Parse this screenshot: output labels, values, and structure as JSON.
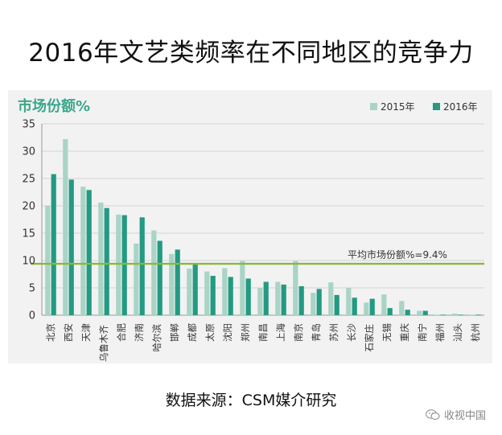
{
  "title": "2016年文艺类频率在不同地区的竞争力",
  "source": "数据来源：CSM媒介研究",
  "watermark": "收视中国",
  "colors": {
    "series_2015": "#a9d4c6",
    "series_2016": "#239a82",
    "average_line": "#8ab83c",
    "unit_label": "#3aa78a",
    "axis_text": "#333333"
  },
  "chart_data": {
    "type": "bar",
    "unit_label": "市场份额%",
    "ylim": [
      0,
      35
    ],
    "yticks": [
      0,
      5,
      10,
      15,
      20,
      25,
      30,
      35
    ],
    "categories": [
      "北京",
      "西安",
      "天津",
      "乌鲁木齐",
      "合肥",
      "济南",
      "哈尔滨",
      "邯郸",
      "成都",
      "太原",
      "沈阳",
      "郑州",
      "南昌",
      "上海",
      "南京",
      "青岛",
      "苏州",
      "长沙",
      "石家庄",
      "无锡",
      "重庆",
      "南宁",
      "福州",
      "汕头",
      "杭州"
    ],
    "series": [
      {
        "name": "2015年",
        "values": [
          20.0,
          32.2,
          23.5,
          20.6,
          18.4,
          13.1,
          15.5,
          11.2,
          8.5,
          8.0,
          8.6,
          9.9,
          5.0,
          6.1,
          9.9,
          4.1,
          6.0,
          5.0,
          2.3,
          3.8,
          2.6,
          0.8,
          0.1,
          0.3,
          0.1
        ]
      },
      {
        "name": "2016年",
        "values": [
          25.8,
          24.8,
          22.9,
          19.6,
          18.3,
          17.9,
          13.6,
          12.0,
          9.3,
          7.2,
          7.0,
          6.7,
          6.1,
          5.6,
          5.3,
          4.8,
          3.7,
          3.2,
          3.0,
          1.3,
          1.0,
          0.8,
          0.1,
          0.1,
          0.1
        ]
      }
    ],
    "average": {
      "label": "平均市场份额%=9.4%",
      "value": 9.4
    }
  }
}
